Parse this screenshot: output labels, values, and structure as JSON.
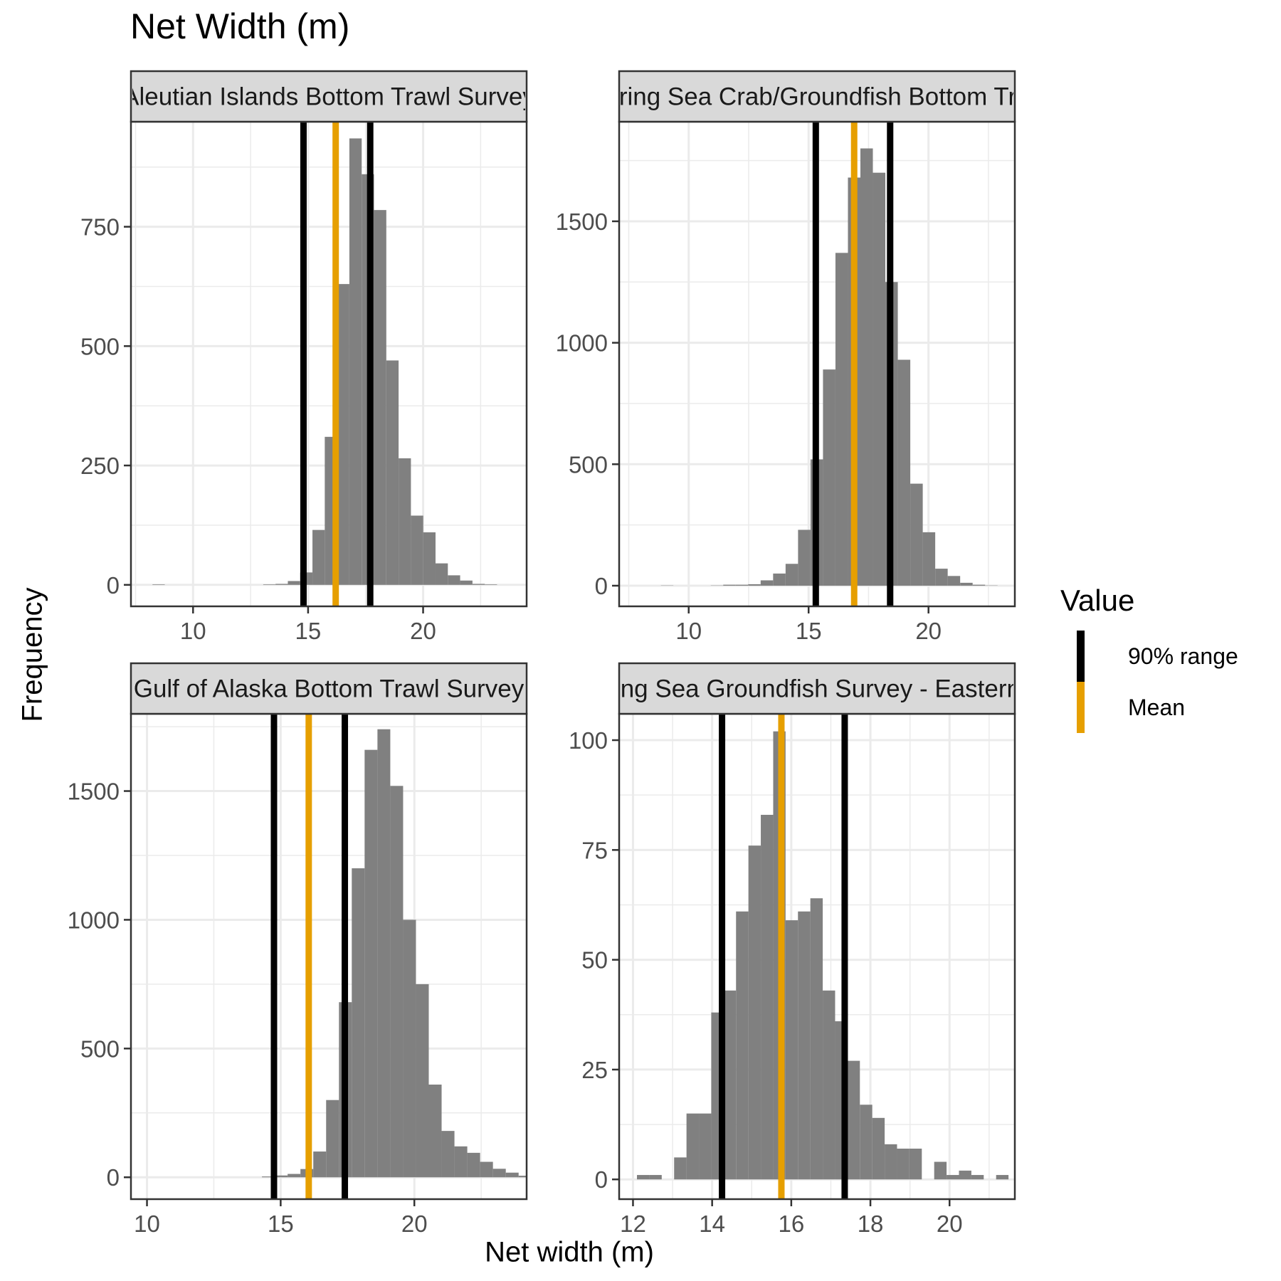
{
  "title": "Net Width (m)",
  "xlabel": "Net width (m)",
  "ylabel": "Frequency",
  "legend": {
    "title": "Value",
    "placement": "right",
    "items": [
      {
        "label": "90% range",
        "color": "#000000"
      },
      {
        "label": "Mean",
        "color": "#E69F00"
      }
    ]
  },
  "colors": {
    "bar": "#808080",
    "range_line": "#000000",
    "mean_line": "#E69F00",
    "strip": "#D9D9D9",
    "grid": "#EBEBEB"
  },
  "chart_data": [
    {
      "type": "bar",
      "strip": "Aleutian Islands Bottom Trawl Survey",
      "xlim": [
        7.3,
        24.5
      ],
      "ylim": [
        -45,
        970
      ],
      "xticks": [
        10,
        15,
        20
      ],
      "yticks": [
        0,
        250,
        500,
        750
      ],
      "bin_width": 0.535,
      "bin_start": 7.7,
      "values": [
        0,
        1,
        0,
        0,
        0,
        0,
        0,
        0,
        0,
        0,
        1,
        2,
        8,
        26,
        115,
        310,
        630,
        935,
        860,
        785,
        470,
        265,
        145,
        110,
        45,
        20,
        9,
        2,
        1,
        0,
        0,
        0,
        1,
        0
      ],
      "range": [
        14.8,
        17.7
      ],
      "mean": 16.2
    },
    {
      "type": "bar",
      "strip": "Eastern Bering Sea Crab/Groundfish Bottom Trawl Survey",
      "xlim": [
        7.1,
        23.6
      ],
      "ylim": [
        -85,
        1910
      ],
      "xticks": [
        10,
        15,
        20
      ],
      "yticks": [
        0,
        500,
        1000,
        1500
      ],
      "bin_width": 0.52,
      "bin_start": 7.8,
      "values": [
        0,
        0,
        1,
        0,
        0,
        0,
        1,
        4,
        4,
        6,
        22,
        50,
        90,
        230,
        520,
        890,
        1370,
        1680,
        1800,
        1700,
        1250,
        930,
        420,
        220,
        70,
        40,
        12,
        4,
        1,
        0
      ],
      "range": [
        15.3,
        18.4
      ],
      "mean": 16.9
    },
    {
      "type": "bar",
      "strip": "Gulf of Alaska Bottom Trawl Survey",
      "xlim": [
        9.4,
        24.2
      ],
      "ylim": [
        -85,
        1800
      ],
      "xticks": [
        10,
        15,
        20
      ],
      "yticks": [
        0,
        500,
        1000,
        1500
      ],
      "bin_width": 0.48,
      "bin_start": 9.5,
      "values": [
        0,
        0,
        0,
        0,
        0,
        0,
        0,
        0,
        0,
        0,
        3,
        7,
        13,
        32,
        100,
        300,
        680,
        1200,
        1660,
        1740,
        1520,
        1000,
        750,
        360,
        180,
        120,
        95,
        60,
        33,
        18,
        6,
        0,
        0,
        0,
        0,
        0
      ],
      "range": [
        14.75,
        17.4
      ],
      "mean": 16.05
    },
    {
      "type": "bar",
      "strip": "Eastern Bering Sea Groundfish Survey - Eastern Bering Sea",
      "xlim": [
        11.65,
        21.65
      ],
      "ylim": [
        -4.5,
        106
      ],
      "xticks": [
        12,
        14,
        16,
        18,
        20
      ],
      "yticks": [
        0,
        25,
        50,
        75,
        100
      ],
      "bin_width": 0.313,
      "bin_start": 12.1,
      "values": [
        1,
        1,
        0,
        5,
        15,
        15,
        38,
        43,
        61,
        76,
        83,
        102,
        59,
        61,
        64,
        43,
        36,
        27,
        17,
        14,
        8,
        7,
        7,
        0,
        4,
        1,
        2,
        1,
        0,
        1
      ],
      "range": [
        14.25,
        17.35
      ],
      "mean": 15.75
    }
  ]
}
